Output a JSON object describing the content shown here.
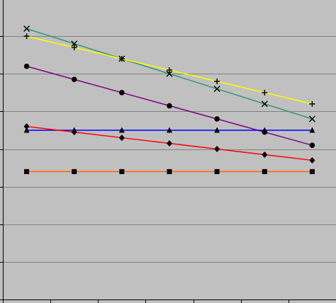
{
  "chart_data": {
    "type": "line",
    "title": "",
    "xlabel": "",
    "ylabel": "",
    "x": [
      1,
      2,
      3,
      4,
      5,
      6,
      7
    ],
    "xlim": [
      0.5,
      7.5
    ],
    "ylim": [
      0,
      8
    ],
    "grid": true,
    "background": "#c0c0c0",
    "gridColor": "#808080",
    "axisColor": "#000000",
    "series": [
      {
        "marker": "x",
        "color": "#339977",
        "values": [
          7.2,
          6.8,
          6.4,
          6.0,
          5.6,
          5.2,
          4.8
        ]
      },
      {
        "marker": "plus",
        "color": "#ffff00",
        "values": [
          7.0,
          6.7,
          6.4,
          6.1,
          5.8,
          5.5,
          5.2
        ]
      },
      {
        "marker": "circle",
        "color": "#800080",
        "values": [
          6.2,
          5.85,
          5.5,
          5.15,
          4.8,
          4.45,
          4.1
        ]
      },
      {
        "marker": "triangle",
        "color": "#0000ff",
        "values": [
          4.5,
          4.5,
          4.5,
          4.5,
          4.5,
          4.5,
          4.5
        ]
      },
      {
        "marker": "diamond",
        "color": "#ff0000",
        "values": [
          4.6,
          4.45,
          4.3,
          4.15,
          4.0,
          3.85,
          3.7
        ]
      },
      {
        "marker": "square",
        "color": "#ff6600",
        "values": [
          3.4,
          3.4,
          3.4,
          3.4,
          3.4,
          3.4,
          3.4
        ]
      }
    ]
  }
}
